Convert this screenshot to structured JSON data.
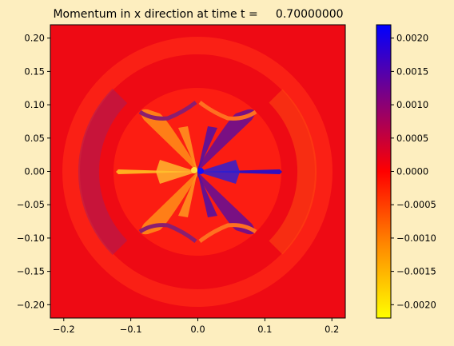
{
  "chart_data": {
    "type": "heatmap",
    "title": "Momentum in x direction at time t =     0.70000000",
    "xlabel": "",
    "ylabel": "",
    "xlim": [
      -0.22,
      0.22
    ],
    "ylim": [
      -0.22,
      0.22
    ],
    "x_ticks": [
      -0.2,
      -0.1,
      0.0,
      0.1,
      0.2
    ],
    "x_tick_labels": [
      "−0.2",
      "−0.1",
      "0.0",
      "0.1",
      "0.2"
    ],
    "y_ticks": [
      -0.2,
      -0.15,
      -0.1,
      -0.05,
      0.0,
      0.05,
      0.1,
      0.15,
      0.2
    ],
    "y_tick_labels": [
      "−0.20",
      "−0.15",
      "−0.10",
      "−0.05",
      "0.00",
      "0.05",
      "0.10",
      "0.15",
      "0.20"
    ],
    "colorbar": {
      "vmin": -0.0022,
      "vmax": 0.0022,
      "ticks": [
        -0.002,
        -0.0015,
        -0.001,
        -0.0005,
        0.0,
        0.0005,
        0.001,
        0.0015,
        0.002
      ],
      "tick_labels": [
        "−0.0020",
        "−0.0015",
        "−0.0010",
        "−0.0005",
        "0.0000",
        "0.0005",
        "0.0010",
        "0.0015",
        "0.0020"
      ],
      "colormap": [
        {
          "value": -0.0022,
          "color": "#ffff00"
        },
        {
          "value": -0.0011,
          "color": "#ff8800"
        },
        {
          "value": 0.0,
          "color": "#ff0000"
        },
        {
          "value": 0.0011,
          "color": "#800080"
        },
        {
          "value": 0.0022,
          "color": "#0000ff"
        }
      ]
    },
    "grid": false,
    "background_color": "#fdeebf"
  }
}
